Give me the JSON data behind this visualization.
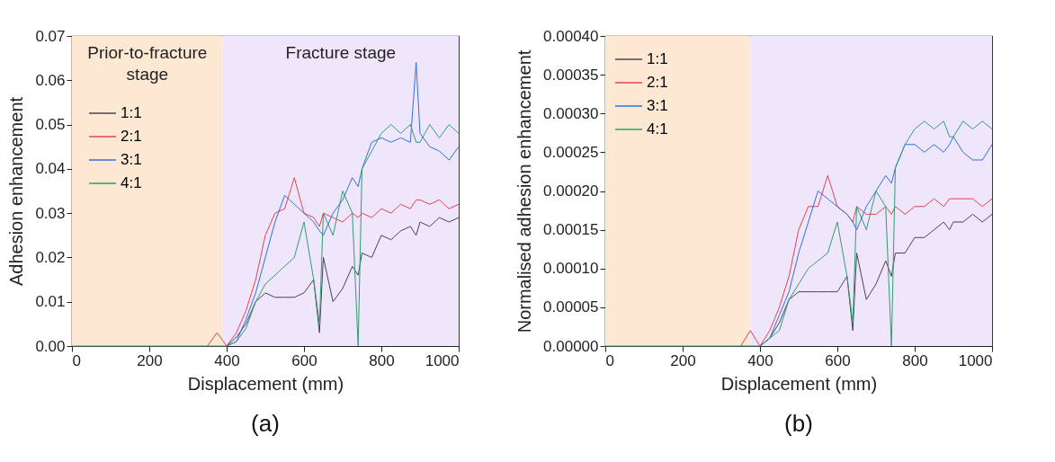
{
  "chart_data": [
    {
      "type": "line",
      "xlabel": "Displacement (mm)",
      "ylabel": "Adhesion enhancement",
      "annotations": [
        "(a)"
      ],
      "legend": "top left",
      "grid": false,
      "xlim": [
        0,
        1000
      ],
      "xticks": [
        0,
        200,
        400,
        600,
        800,
        1000
      ],
      "ylim": [
        0,
        0.07
      ],
      "yticks": [
        {
          "value": 0,
          "label": "0.00"
        },
        {
          "value": 0.01,
          "label": "0.01"
        },
        {
          "value": 0.02,
          "label": "0.02"
        },
        {
          "value": 0.03,
          "label": "0.03"
        },
        {
          "value": 0.04,
          "label": "0.04"
        },
        {
          "value": 0.05,
          "label": "0.05"
        },
        {
          "value": 0.06,
          "label": "0.06"
        },
        {
          "value": 0.07,
          "label": "0.07"
        }
      ],
      "bands": [
        {
          "axis": "x",
          "from": 0,
          "to": 390,
          "label": "Prior-to-fracture\nstage",
          "color": "#fde8d4"
        },
        {
          "axis": "x",
          "from": 390,
          "to": 1000,
          "label": "Fracture stage",
          "color": "#f0e6fb"
        }
      ],
      "x": [
        0,
        100,
        200,
        300,
        350,
        375,
        400,
        425,
        450,
        475,
        500,
        525,
        550,
        575,
        600,
        625,
        640,
        650,
        675,
        700,
        725,
        740,
        750,
        775,
        800,
        825,
        850,
        875,
        890,
        900,
        925,
        950,
        975,
        1000
      ],
      "series": [
        {
          "name": "1:1",
          "color": "#4b4453",
          "values": [
            null,
            null,
            null,
            null,
            null,
            null,
            0,
            0.002,
            0.005,
            0.01,
            0.012,
            0.011,
            0.011,
            0.011,
            0.012,
            0.015,
            0.003,
            0.02,
            0.01,
            0.013,
            0.018,
            0.016,
            0.021,
            0.02,
            0.025,
            0.024,
            0.026,
            0.027,
            0.025,
            0.028,
            0.027,
            0.029,
            0.028,
            0.029
          ]
        },
        {
          "name": "2:1",
          "color": "#e8414f",
          "values": [
            null,
            null,
            null,
            null,
            0,
            0.003,
            0,
            0.003,
            0.008,
            0.015,
            0.025,
            0.03,
            0.031,
            0.038,
            0.03,
            0.029,
            0.027,
            0.03,
            0.029,
            0.028,
            0.03,
            0.029,
            0.03,
            0.029,
            0.031,
            0.03,
            0.032,
            0.031,
            0.033,
            0.033,
            0.032,
            0.033,
            0.031,
            0.032
          ]
        },
        {
          "name": "3:1",
          "color": "#2f6fe0",
          "values": [
            null,
            null,
            null,
            null,
            null,
            null,
            0,
            0.001,
            0.006,
            0.012,
            0.02,
            0.028,
            0.034,
            0.032,
            0.03,
            0.028,
            0.026,
            0.025,
            0.03,
            0.033,
            0.038,
            0.036,
            0.04,
            0.046,
            0.047,
            0.046,
            0.047,
            0.046,
            0.064,
            0.048,
            0.045,
            0.044,
            0.042,
            0.045
          ]
        },
        {
          "name": "4:1",
          "color": "#2e9e6e",
          "values": [
            0,
            0,
            0,
            0,
            0,
            0,
            0,
            0.001,
            0.004,
            0.01,
            0.014,
            0.016,
            0.018,
            0.02,
            0.028,
            0.015,
            0.005,
            0.03,
            0.025,
            0.035,
            0.03,
            0,
            0.04,
            0.044,
            0.048,
            0.05,
            0.048,
            0.05,
            0.046,
            0.046,
            0.05,
            0.047,
            0.05,
            0.048
          ]
        }
      ]
    },
    {
      "type": "line",
      "xlabel": "Displacement (mm)",
      "ylabel": "Normalised adhesion enhancement",
      "annotations": [
        "(b)"
      ],
      "legend": "top left",
      "grid": false,
      "xlim": [
        0,
        1000
      ],
      "xticks": [
        0,
        200,
        400,
        600,
        800,
        1000
      ],
      "ylim": [
        0,
        0.0004
      ],
      "yticks": [
        {
          "value": 0,
          "label": "0.00000"
        },
        {
          "value": 5e-05,
          "label": "0.00005"
        },
        {
          "value": 0.0001,
          "label": "0.00010"
        },
        {
          "value": 0.00015,
          "label": "0.00015"
        },
        {
          "value": 0.0002,
          "label": "0.00020"
        },
        {
          "value": 0.00025,
          "label": "0.00025"
        },
        {
          "value": 0.0003,
          "label": "0.00030"
        },
        {
          "value": 0.00035,
          "label": "0.00035"
        },
        {
          "value": 0.0004,
          "label": "0.00040"
        }
      ],
      "bands": [
        {
          "axis": "x",
          "from": 0,
          "to": 375,
          "color": "#fde8d4"
        },
        {
          "axis": "x",
          "from": 375,
          "to": 1000,
          "color": "#f0e6fb"
        }
      ],
      "x": [
        0,
        100,
        200,
        300,
        350,
        375,
        400,
        425,
        450,
        475,
        500,
        525,
        550,
        575,
        600,
        625,
        640,
        650,
        675,
        700,
        725,
        740,
        750,
        775,
        800,
        825,
        850,
        875,
        890,
        900,
        925,
        950,
        975,
        1000
      ],
      "series": [
        {
          "name": "1:1",
          "color": "#4b4453",
          "values": [
            null,
            null,
            null,
            null,
            null,
            null,
            0,
            1e-05,
            3e-05,
            6e-05,
            7e-05,
            7e-05,
            7e-05,
            7e-05,
            7e-05,
            9e-05,
            2e-05,
            0.00012,
            6e-05,
            8e-05,
            0.00011,
            9e-05,
            0.00012,
            0.00012,
            0.00014,
            0.00014,
            0.00015,
            0.00016,
            0.00015,
            0.00016,
            0.00016,
            0.00017,
            0.00016,
            0.00017
          ]
        },
        {
          "name": "2:1",
          "color": "#e8414f",
          "values": [
            null,
            null,
            null,
            null,
            0,
            2e-05,
            0,
            2e-05,
            5e-05,
            9e-05,
            0.00015,
            0.00018,
            0.00018,
            0.00022,
            0.00018,
            0.00017,
            0.00016,
            0.00018,
            0.00017,
            0.00017,
            0.00018,
            0.00017,
            0.00018,
            0.00017,
            0.00018,
            0.00018,
            0.00019,
            0.00018,
            0.00019,
            0.00019,
            0.00019,
            0.00019,
            0.00018,
            0.00019
          ]
        },
        {
          "name": "3:1",
          "color": "#2f6fe0",
          "values": [
            null,
            null,
            null,
            null,
            null,
            null,
            0,
            1e-05,
            4e-05,
            7e-05,
            0.00012,
            0.00016,
            0.0002,
            0.00019,
            0.00018,
            0.00017,
            0.00016,
            0.00015,
            0.00018,
            0.0002,
            0.00022,
            0.00021,
            0.00023,
            0.00026,
            0.00026,
            0.00025,
            0.00026,
            0.00025,
            0.00026,
            0.00027,
            0.00025,
            0.00024,
            0.00024,
            0.00026
          ]
        },
        {
          "name": "4:1",
          "color": "#2e9e6e",
          "values": [
            0,
            0,
            0,
            0,
            0,
            0,
            0,
            1e-05,
            2e-05,
            6e-05,
            8e-05,
            0.0001,
            0.00011,
            0.00012,
            0.00016,
            9e-05,
            3e-05,
            0.00018,
            0.00015,
            0.0002,
            0.00018,
            0,
            0.00023,
            0.00026,
            0.00028,
            0.00029,
            0.00028,
            0.00029,
            0.00027,
            0.00027,
            0.00029,
            0.00028,
            0.00029,
            0.00028
          ]
        }
      ]
    }
  ]
}
